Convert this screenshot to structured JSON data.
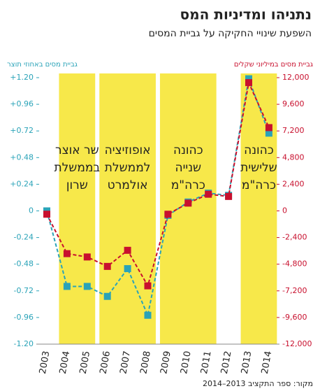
{
  "chart_data": {
    "type": "line",
    "title": "נתניהו ומדיניות המס",
    "subtitle": "השפעת שינויי החקיקה על גביית המסים",
    "y_label": "גביית מסים באחוזי תוצר",
    "y2_label": "גביית מסים במיליוני שקלים",
    "source": "מקור: ספר התקציב 2013–2014",
    "categories": [
      "2003",
      "2004",
      "2005",
      "2006",
      "2007",
      "2008",
      "2009",
      "2010",
      "2011",
      "2012",
      "2013",
      "2014"
    ],
    "series": [
      {
        "name": "גביית מסים באחוזי תוצר",
        "color": "#2aa3b8",
        "values": [
          0,
          -0.68,
          -0.68,
          -0.77,
          -0.52,
          -0.94,
          -0.04,
          0.08,
          0.16,
          0.14,
          1.19,
          0.7
        ]
      },
      {
        "name": "גביית מסים במיליוני שקלים",
        "color": "#c8102e",
        "axis": "y2",
        "values": [
          -300,
          -3850,
          -4150,
          -5000,
          -3550,
          -6750,
          -300,
          700,
          1500,
          1300,
          11550,
          7500
        ]
      }
    ],
    "ylim": [
      -1.2,
      1.2
    ],
    "yticks": [
      {
        "value": -1.2,
        "label": "-1.20"
      },
      -0.96,
      -0.72,
      -0.48,
      -0.24,
      0,
      {
        "value": 0.24,
        "label": "+0.24"
      },
      {
        "value": 0.48,
        "label": "+0.48"
      },
      {
        "value": 0.72,
        "label": "+0.72"
      },
      {
        "value": 0.96,
        "label": "+0.96"
      },
      {
        "value": 1.2,
        "label": "+1.20"
      }
    ],
    "y2lim": [
      -12000,
      12000
    ],
    "y2ticks": [
      {
        "value": -12000,
        "label": "-12,000"
      },
      {
        "value": -9600,
        "label": "-9,600"
      },
      {
        "value": -7200,
        "label": "-7,200"
      },
      {
        "value": -4800,
        "label": "-4,800"
      },
      {
        "value": -2400,
        "label": "-2,400"
      },
      0,
      {
        "value": 2400,
        "label": "2,400"
      },
      {
        "value": 4800,
        "label": "4,800"
      },
      {
        "value": 7200,
        "label": "7,200"
      },
      {
        "value": 9600,
        "label": "9,600"
      },
      {
        "value": 12000,
        "label": "12,000"
      }
    ],
    "periods": [
      {
        "from": "2004",
        "to": "2005",
        "label": [
          "שר אוצר",
          "בממשלת",
          "שרון"
        ]
      },
      {
        "from": "2006",
        "to": "2008",
        "label": [
          "אופוזיציה",
          "לממשלת",
          "אולמרט"
        ]
      },
      {
        "from": "2009",
        "to": "2011",
        "label": [
          "כהונה",
          "שנייה",
          "כרה\"מ"
        ]
      },
      {
        "from": "2013",
        "to": "2014",
        "label": [
          "כהונה",
          "שלישית",
          "כרה\"מ"
        ]
      }
    ]
  }
}
